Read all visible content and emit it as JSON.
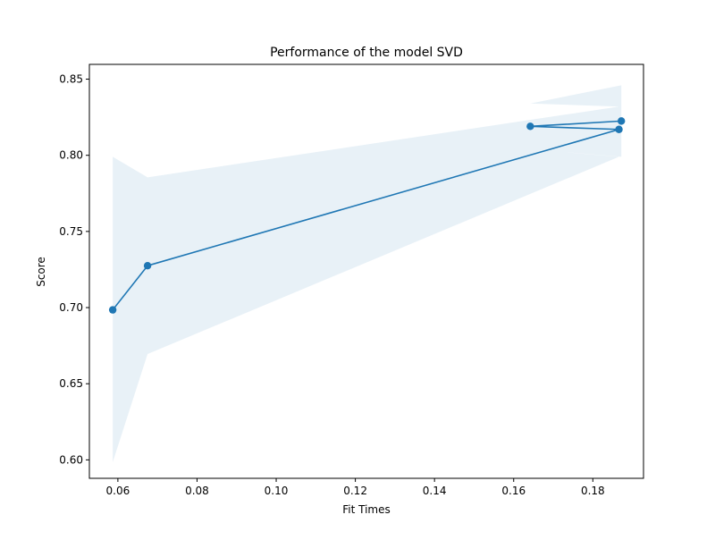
{
  "chart_data": {
    "type": "line",
    "title": "Performance of the model SVD",
    "xlabel": "Fit Times",
    "ylabel": "Score",
    "xlim": [
      0.0528,
      0.1928
    ],
    "ylim": [
      0.5879,
      0.8597
    ],
    "xticks": [
      0.06,
      0.08,
      0.1,
      0.12,
      0.14,
      0.16,
      0.18
    ],
    "xtick_labels": [
      "0.06",
      "0.08",
      "0.10",
      "0.12",
      "0.14",
      "0.16",
      "0.18"
    ],
    "yticks": [
      0.6,
      0.65,
      0.7,
      0.75,
      0.8,
      0.85
    ],
    "ytick_labels": [
      "0.60",
      "0.65",
      "0.70",
      "0.75",
      "0.80",
      "0.85"
    ],
    "grid": false,
    "legend": "none",
    "series": [
      {
        "x": [
          0.0587,
          0.0675,
          0.1866,
          0.1642,
          0.1872
        ],
        "y": [
          0.6985,
          0.7275,
          0.817,
          0.819,
          0.8225
        ],
        "color": "#1f77b4"
      }
    ],
    "band": {
      "x": [
        0.0587,
        0.0675,
        0.1866,
        0.1642,
        0.1872
      ],
      "lower": [
        0.5985,
        0.6695,
        0.799,
        0.804,
        0.799
      ],
      "upper": [
        0.799,
        0.7855,
        0.832,
        0.834,
        0.846
      ],
      "color": "#1f77b4",
      "alpha": 0.1
    }
  }
}
